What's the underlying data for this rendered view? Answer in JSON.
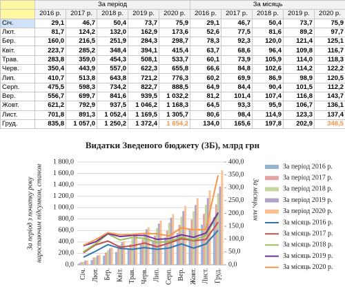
{
  "table": {
    "group_headers": [
      "За період",
      "За місяць"
    ],
    "year_headers": [
      "2016 р.",
      "2017 р.",
      "2018 р.",
      "2019 р.",
      "2020 р.",
      "2016 р.",
      "2017 р.",
      "2018 р.",
      "2019 р.",
      "2020 р."
    ],
    "rows": [
      [
        "Січ.",
        "29,1",
        "46,7",
        "50,4",
        "73,7",
        "75,9",
        "29,1",
        "46,7",
        "50,4",
        "73,7",
        "75,9"
      ],
      [
        "Лют.",
        "81,7",
        "124,2",
        "132,0",
        "162,9",
        "173,6",
        "52,6",
        "77,5",
        "81,6",
        "89,2",
        "97,7"
      ],
      [
        "Бер.",
        "160,0",
        "216,5",
        "251,9",
        "284,3",
        "298,7",
        "78,3",
        "92,3",
        "120,0",
        "121,4",
        "125,1"
      ],
      [
        "Квіт.",
        "223,7",
        "285,2",
        "348,4",
        "394,1",
        "415,4",
        "63,7",
        "68,6",
        "96,4",
        "109,8",
        "116,7"
      ],
      [
        "Трав.",
        "283,8",
        "359,0",
        "454,3",
        "508,1",
        "533,7",
        "60,1",
        "73,9",
        "105,9",
        "114,0",
        "118,3"
      ],
      [
        "Черв.",
        "350,4",
        "443,9",
        "557,0",
        "622,3",
        "655,8",
        "66,6",
        "84,8",
        "102,6",
        "114,2",
        "122,2"
      ],
      [
        "Лип.",
        "410,7",
        "513,8",
        "643,8",
        "721,2",
        "776,3",
        "60,2",
        "69,9",
        "86,9",
        "98,9",
        "120,5"
      ],
      [
        "Серп.",
        "475,5",
        "598,3",
        "734,2",
        "822,7",
        "888,5",
        "64,9",
        "84,4",
        "90,4",
        "101,5",
        "112,2"
      ],
      [
        "Вер.",
        "556,7",
        "699,7",
        "841,6",
        "939,5",
        "1 032,2",
        "81,2",
        "101,4",
        "107,4",
        "116,8",
        "143,7"
      ],
      [
        "Жовт.",
        "621,2",
        "792,9",
        "937,5",
        "1 046,2",
        "1 168,3",
        "64,5",
        "93,3",
        "95,9",
        "106,7",
        "136,1"
      ],
      [
        "Лист.",
        "701,8",
        "891,3",
        "1 052,4",
        "1 169,5",
        "1 305,7",
        "80,6",
        "98,4",
        "114,9",
        "123,3",
        "137,4"
      ],
      [
        "Груд.",
        "835,8",
        "1 057,0",
        "1 250,2",
        "1 372,4",
        "1 654,2",
        "134,0",
        "165,6",
        "197,8",
        "202,9",
        "348,5"
      ]
    ]
  },
  "chart_data": {
    "type": "combo",
    "title": "Видатки Зведеного бюджету (ЗБ), млрд грн",
    "ylabel": [
      "За період з початку року",
      "наростаючим підсумком, станом"
    ],
    "y2label": "За місяць, млн",
    "categories": [
      "Січ.",
      "Лют.",
      "Бер.",
      "Квіт.",
      "Трав.",
      "Черв.",
      "Лип.",
      "Серп.",
      "Вер.",
      "Жовт.",
      "Лист.",
      "Груд."
    ],
    "ylim": [
      0,
      1800
    ],
    "yticks": [
      {
        "value": 0,
        "label": "0,0"
      },
      {
        "value": 200,
        "label": "200,0"
      },
      {
        "value": 400,
        "label": "400,0"
      },
      {
        "value": 600,
        "label": "600,0"
      },
      {
        "value": 800,
        "label": "800,0"
      },
      {
        "value": 1000,
        "label": "1 000,0"
      },
      {
        "value": 1200,
        "label": "1 200,0"
      },
      {
        "value": 1400,
        "label": "1 400,0"
      },
      {
        "value": 1600,
        "label": "1 600,0"
      },
      {
        "value": 1800,
        "label": "1 800,0"
      }
    ],
    "y2lim": [
      0,
      400
    ],
    "y2ticks": [
      {
        "value": 0,
        "label": "0,0"
      },
      {
        "value": 50,
        "label": "50,0"
      },
      {
        "value": 100,
        "label": "100,0"
      },
      {
        "value": 150,
        "label": "150,0"
      },
      {
        "value": 200,
        "label": "200,0"
      },
      {
        "value": 250,
        "label": "250,0"
      },
      {
        "value": 300,
        "label": "300,0"
      },
      {
        "value": 350,
        "label": "350,0"
      },
      {
        "value": 400,
        "label": "400,0"
      }
    ],
    "grid": true,
    "series": [
      {
        "name": "За період 2016 р.",
        "type": "bar",
        "color": "#95b3d7",
        "values": [
          29.1,
          81.7,
          160.0,
          223.7,
          283.8,
          350.4,
          410.7,
          475.5,
          556.7,
          621.2,
          701.8,
          835.8
        ]
      },
      {
        "name": "За період 2017 р.",
        "type": "bar",
        "color": "#e6a3a1",
        "values": [
          46.7,
          124.2,
          216.5,
          285.2,
          359.0,
          443.9,
          513.8,
          598.3,
          699.7,
          792.9,
          891.3,
          1057.0
        ]
      },
      {
        "name": "За період 2018 р.",
        "type": "bar",
        "color": "#c3d69b",
        "values": [
          50.4,
          132.0,
          251.9,
          348.4,
          454.3,
          557.0,
          643.8,
          734.2,
          841.6,
          937.5,
          1052.4,
          1250.2
        ]
      },
      {
        "name": "За період 2019 р.",
        "type": "bar",
        "color": "#b3a2c7",
        "values": [
          73.7,
          162.9,
          284.3,
          394.1,
          508.1,
          622.3,
          721.2,
          822.7,
          939.5,
          1046.2,
          1169.5,
          1372.4
        ]
      },
      {
        "name": "За період 2020 р.",
        "type": "bar",
        "color": "#fac090",
        "values": [
          75.9,
          173.6,
          298.7,
          415.4,
          533.7,
          655.8,
          776.3,
          888.5,
          1032.2,
          1168.3,
          1305.7,
          1654.2
        ]
      },
      {
        "name": "За місяць 2016 р.",
        "type": "line",
        "axis": "y2",
        "color": "#2e75b6",
        "values": [
          29.1,
          52.6,
          78.3,
          63.7,
          60.1,
          66.6,
          60.2,
          64.9,
          81.2,
          64.5,
          80.6,
          134.0
        ]
      },
      {
        "name": "За місяць 2017 р.",
        "type": "line",
        "axis": "y2",
        "color": "#c0504d",
        "values": [
          46.7,
          77.5,
          92.3,
          68.6,
          73.9,
          84.8,
          69.9,
          84.4,
          101.4,
          93.3,
          98.4,
          165.6
        ]
      },
      {
        "name": "За місяць 2018 р.",
        "type": "line",
        "axis": "y2",
        "color": "#9bbb59",
        "values": [
          50.4,
          81.6,
          120.0,
          96.4,
          105.9,
          102.6,
          86.9,
          90.4,
          107.4,
          95.9,
          114.9,
          197.8
        ]
      },
      {
        "name": "За місяць 2019 р.",
        "type": "line",
        "axis": "y2",
        "color": "#7030a0",
        "values": [
          73.7,
          89.2,
          121.4,
          109.8,
          114.0,
          114.2,
          98.9,
          101.5,
          116.8,
          106.7,
          123.3,
          202.9
        ]
      },
      {
        "name": "За місяць 2020 р.",
        "type": "line",
        "axis": "y2",
        "color": "#f79646",
        "values": [
          75.9,
          97.7,
          125.1,
          116.7,
          118.3,
          122.2,
          120.5,
          112.2,
          143.7,
          136.1,
          137.4,
          348.5
        ]
      }
    ]
  }
}
